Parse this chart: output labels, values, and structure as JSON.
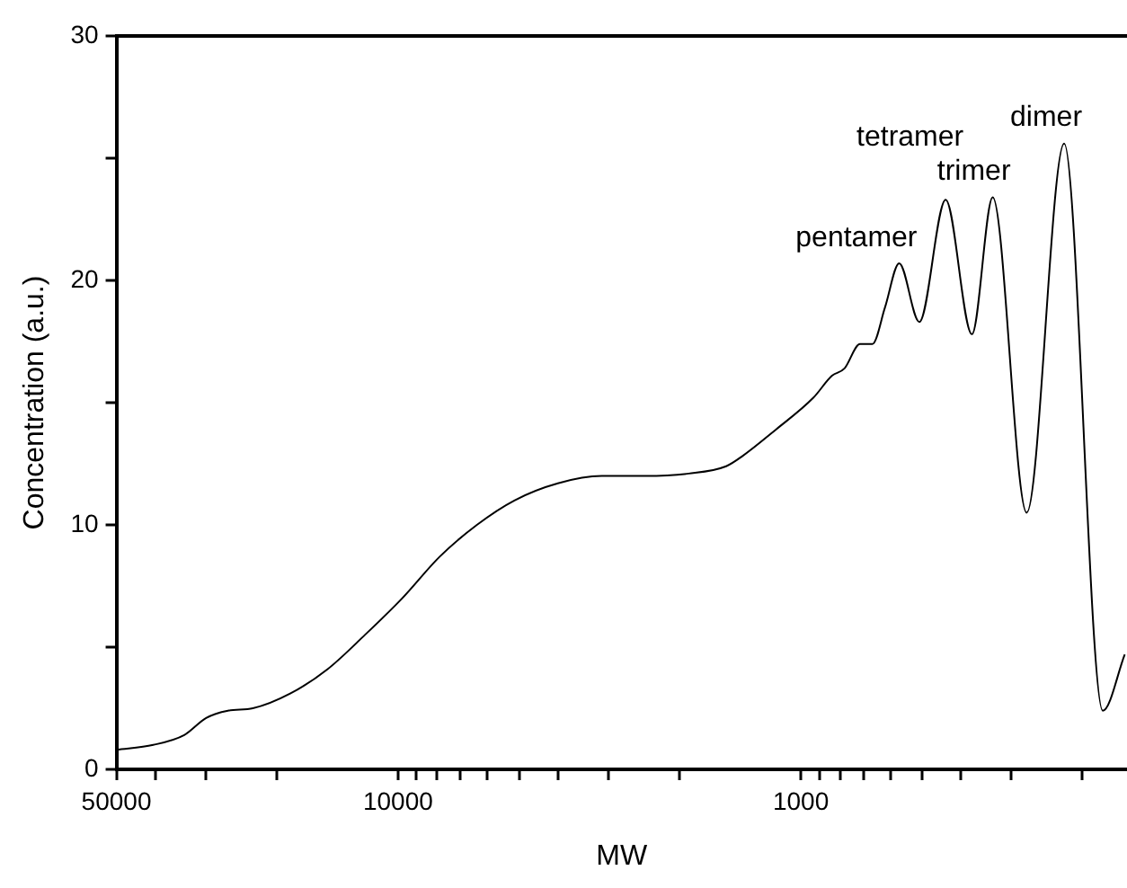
{
  "chart_data": {
    "type": "line",
    "xlabel": "MW",
    "ylabel": "Concentration (a.u.)",
    "log": "x",
    "xlim": [
      50000,
      155
    ],
    "ylim": [
      0,
      30
    ],
    "xticks": [
      50000,
      {
        "value": 40000,
        "label": null
      },
      {
        "value": 30000,
        "label": null
      },
      {
        "value": 20000,
        "label": null
      },
      10000,
      {
        "value": 9000,
        "label": null
      },
      {
        "value": 8000,
        "label": null
      },
      {
        "value": 7000,
        "label": null
      },
      {
        "value": 6000,
        "label": null
      },
      {
        "value": 5000,
        "label": null
      },
      {
        "value": 4000,
        "label": null
      },
      {
        "value": 3000,
        "label": null
      },
      {
        "value": 2000,
        "label": null
      },
      1000,
      {
        "value": 900,
        "label": null
      },
      {
        "value": 800,
        "label": null
      },
      {
        "value": 700,
        "label": null
      },
      {
        "value": 600,
        "label": null
      },
      {
        "value": 500,
        "label": null
      },
      {
        "value": 400,
        "label": null
      },
      {
        "value": 300,
        "label": null
      },
      {
        "value": 200,
        "label": null
      }
    ],
    "yticks": [
      0,
      {
        "value": 5,
        "label": null
      },
      10,
      {
        "value": 15,
        "label": null
      },
      20,
      {
        "value": 25,
        "label": null
      },
      30
    ],
    "grid": false,
    "legend": false,
    "marker": "none",
    "line_style": "solid",
    "series": [
      {
        "color": "#000000",
        "x": [
          50000,
          40520,
          33940,
          29950,
          26430,
          22920,
          18520,
          14950,
          12080,
          9760,
          7880,
          6370,
          5140,
          4010,
          3120,
          2433,
          1897,
          1532,
          1400,
          1153,
          931,
          837,
          779,
          713,
          664,
          618,
          570,
          508,
          437,
          376,
          334,
          275,
          222,
          178,
          157
        ],
        "values": [
          0.8,
          1.0,
          1.4,
          2.1,
          2.4,
          2.5,
          3.1,
          4.1,
          5.5,
          7.0,
          8.7,
          10.0,
          11.0,
          11.7,
          12.0,
          12.0,
          12.1,
          12.4,
          12.8,
          13.9,
          15.2,
          16.1,
          16.4,
          17.4,
          17.4,
          18.9,
          20.7,
          18.3,
          23.3,
          17.8,
          23.4,
          10.5,
          25.6,
          2.4,
          4.7
        ]
      }
    ],
    "annotations": [
      {
        "text": "pentamer",
        "x": 570,
        "y": 20.7
      },
      {
        "text": "tetramer",
        "x": 437,
        "y": 23.3
      },
      {
        "text": "trimer",
        "x": 334,
        "y": 23.4
      },
      {
        "text": "dimer",
        "x": 222,
        "y": 25.6
      }
    ]
  }
}
